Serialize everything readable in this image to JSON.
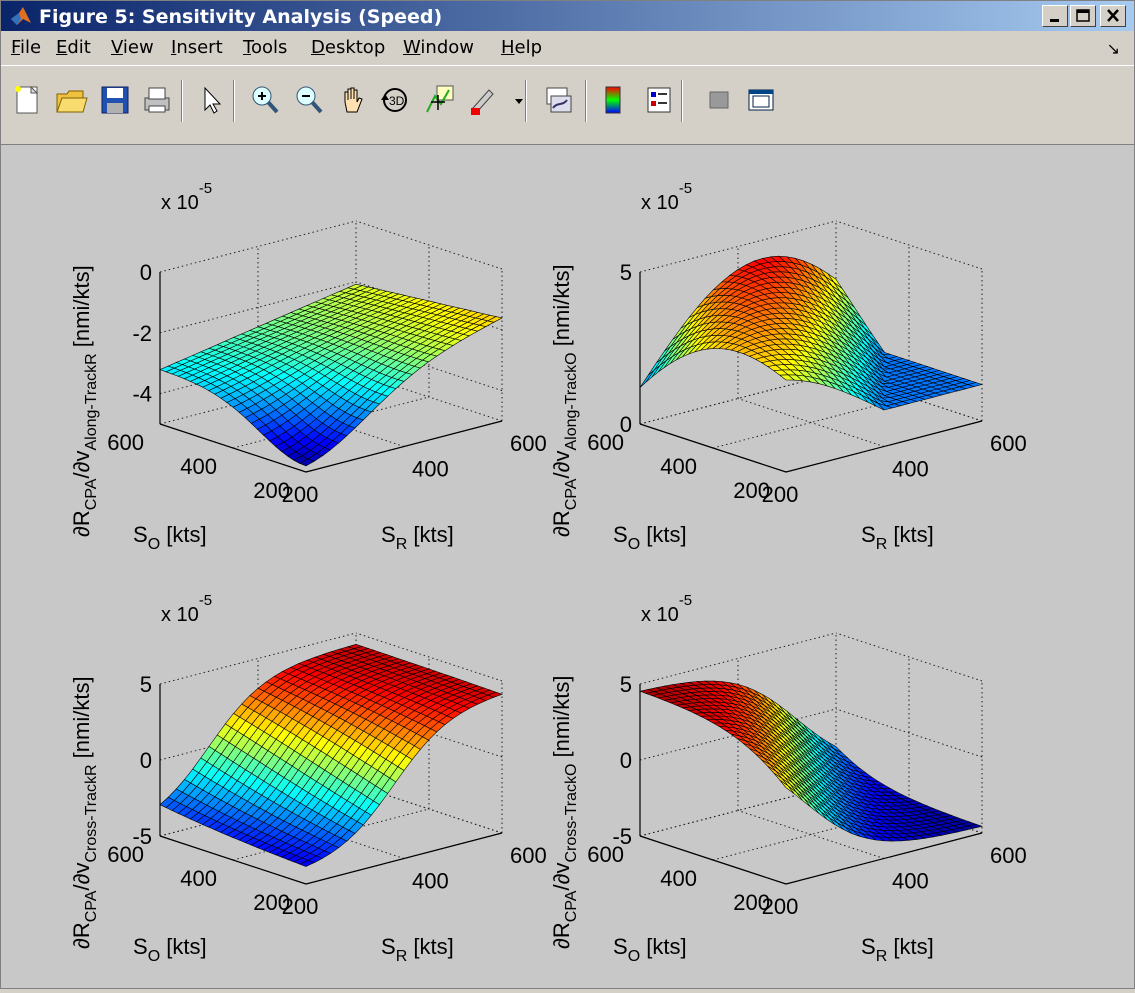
{
  "window": {
    "title": "Figure 5: Sensitivity Analysis (Speed)"
  },
  "menu": [
    {
      "pre": "",
      "u": "F",
      "post": "ile"
    },
    {
      "pre": "",
      "u": "E",
      "post": "dit"
    },
    {
      "pre": "",
      "u": "V",
      "post": "iew"
    },
    {
      "pre": "",
      "u": "I",
      "post": "nsert"
    },
    {
      "pre": "",
      "u": "T",
      "post": "ools"
    },
    {
      "pre": "",
      "u": "D",
      "post": "esktop"
    },
    {
      "pre": "",
      "u": "W",
      "post": "indow"
    },
    {
      "pre": "",
      "u": "H",
      "post": "elp"
    }
  ],
  "toolbar_icons": [
    "new-figure-icon",
    "open-file-icon",
    "save-icon",
    "print-icon",
    "select-arrow-icon",
    "zoom-in-icon",
    "zoom-out-icon",
    "pan-hand-icon",
    "rotate-3d-icon",
    "data-cursor-icon",
    "brush-icon",
    "brush-dropdown-icon",
    "link-plot-icon",
    "colorbar-icon",
    "legend-icon",
    "hide-plot-tools-icon",
    "show-plot-tools-icon"
  ],
  "subplots": [
    {
      "id": "tl",
      "exponent_base": "x 10",
      "exponent_power": "-5",
      "zlabel_main": "∂R",
      "zlabel_sub1": "CPA",
      "zlabel_mid": "/∂v",
      "zlabel_sub2": "Along-TrackR",
      "zlabel_unit": " [nmi/kts]",
      "zticks": [
        "0",
        "-2",
        "-4"
      ],
      "so_ticks": [
        "600",
        "400",
        "200"
      ],
      "sr_ticks": [
        "200",
        "400",
        "600"
      ],
      "so_label": "S",
      "so_sub": "O",
      "so_unit": " [kts]",
      "sr_label": "S",
      "sr_sub": "R",
      "sr_unit": " [kts]"
    },
    {
      "id": "tr",
      "exponent_base": "x 10",
      "exponent_power": "-5",
      "zlabel_main": "∂R",
      "zlabel_sub1": "CPA",
      "zlabel_mid": "/∂v",
      "zlabel_sub2": "Along-TrackO",
      "zlabel_unit": " [nmi/kts]",
      "zticks": [
        "5",
        "0"
      ],
      "so_ticks": [
        "600",
        "400",
        "200"
      ],
      "sr_ticks": [
        "200",
        "400",
        "600"
      ],
      "so_label": "S",
      "so_sub": "O",
      "so_unit": " [kts]",
      "sr_label": "S",
      "sr_sub": "R",
      "sr_unit": " [kts]"
    },
    {
      "id": "bl",
      "exponent_base": "x 10",
      "exponent_power": "-5",
      "zlabel_main": "∂R",
      "zlabel_sub1": "CPA",
      "zlabel_mid": "/∂v",
      "zlabel_sub2": "Cross-TrackR",
      "zlabel_unit": " [nmi/kts]",
      "zticks": [
        "5",
        "0",
        "-5"
      ],
      "so_ticks": [
        "600",
        "400",
        "200"
      ],
      "sr_ticks": [
        "200",
        "400",
        "600"
      ],
      "so_label": "S",
      "so_sub": "O",
      "so_unit": " [kts]",
      "sr_label": "S",
      "sr_sub": "R",
      "sr_unit": " [kts]"
    },
    {
      "id": "br",
      "exponent_base": "x 10",
      "exponent_power": "-5",
      "zlabel_main": "∂R",
      "zlabel_sub1": "CPA",
      "zlabel_mid": "/∂v",
      "zlabel_sub2": "Cross-TrackO",
      "zlabel_unit": " [nmi/kts]",
      "zticks": [
        "5",
        "0",
        "-5"
      ],
      "so_ticks": [
        "600",
        "400",
        "200"
      ],
      "sr_ticks": [
        "200",
        "400",
        "600"
      ],
      "so_label": "S",
      "so_sub": "O",
      "so_unit": " [kts]",
      "sr_label": "S",
      "sr_sub": "R",
      "sr_unit": " [kts]"
    }
  ],
  "chart_data": [
    {
      "type": "surface",
      "surface_kind": "along_r",
      "x_axis": "S_R [kts]",
      "y_axis": "S_O [kts]",
      "x_range": [
        200,
        600
      ],
      "y_range": [
        200,
        600
      ],
      "z_range": [
        -5,
        0
      ],
      "z_scale": "x 10^-5",
      "grid": true
    },
    {
      "type": "surface",
      "surface_kind": "along_o",
      "x_axis": "S_R [kts]",
      "y_axis": "S_O [kts]",
      "x_range": [
        200,
        600
      ],
      "y_range": [
        200,
        600
      ],
      "z_range": [
        0,
        5
      ],
      "z_scale": "x 10^-5",
      "grid": true
    },
    {
      "type": "surface",
      "surface_kind": "cross_r",
      "x_axis": "S_R [kts]",
      "y_axis": "S_O [kts]",
      "x_range": [
        200,
        600
      ],
      "y_range": [
        200,
        600
      ],
      "z_range": [
        -5,
        5
      ],
      "z_scale": "x 10^-5",
      "grid": true
    },
    {
      "type": "surface",
      "surface_kind": "cross_o",
      "x_axis": "S_R [kts]",
      "y_axis": "S_O [kts]",
      "x_range": [
        200,
        600
      ],
      "y_range": [
        200,
        600
      ],
      "z_range": [
        -5,
        5
      ],
      "z_scale": "x 10^-5",
      "grid": true
    }
  ],
  "colors": {
    "title_start": "#0a246a",
    "title_end": "#a6caf0",
    "figure_bg": "#c8c8c8"
  }
}
